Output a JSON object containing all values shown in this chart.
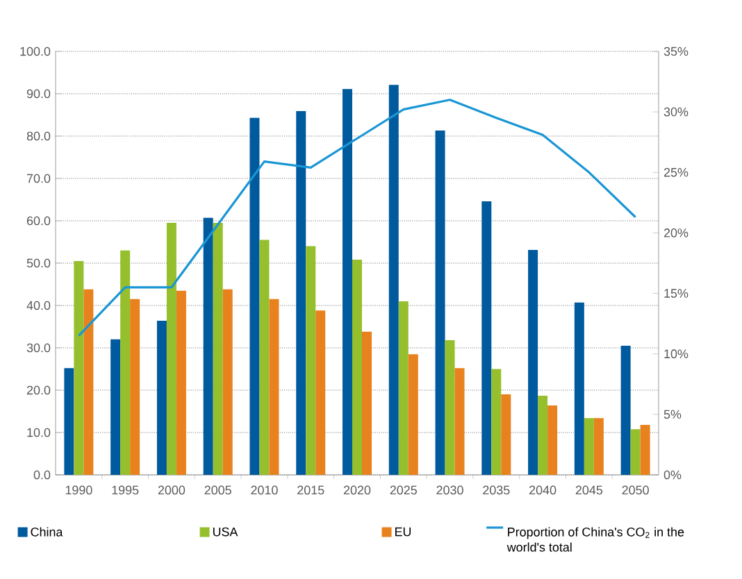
{
  "chart_data": {
    "type": "bar",
    "categories": [
      "1990",
      "1995",
      "2000",
      "2005",
      "2010",
      "2015",
      "2020",
      "2025",
      "2030",
      "2035",
      "2040",
      "2045",
      "2050"
    ],
    "series": [
      {
        "name": "China",
        "color": "#005a9e",
        "values": [
          25.2,
          32,
          36.4,
          60.7,
          84.3,
          85.9,
          91.1,
          92.1,
          81.3,
          64.6,
          53.1,
          40.7,
          30.5
        ]
      },
      {
        "name": "USA",
        "color": "#96bf2d",
        "values": [
          50.5,
          53,
          59.5,
          59.5,
          55.5,
          54,
          50.8,
          41,
          31.8,
          25,
          18.7,
          13.4,
          10.8
        ]
      },
      {
        "name": "EU",
        "color": "#e8821e",
        "values": [
          43.8,
          41.5,
          43.5,
          43.8,
          41.5,
          38.8,
          33.8,
          28.5,
          25.2,
          19,
          16.4,
          13.4,
          11.8
        ]
      },
      {
        "name": "Proportion of China's CO$_{2}$ in the world's total",
        "color": "#1a96d4",
        "type": "line",
        "axis": "y2",
        "values": [
          11.5,
          15.5,
          15.5,
          20.7,
          25.9,
          25.4,
          27.8,
          30.2,
          31,
          29.5,
          28.1,
          25,
          21.3
        ]
      }
    ],
    "ylim": [
      0,
      100
    ],
    "yticks": [
      {
        "value": 0,
        "label": "0.0"
      },
      {
        "value": 10,
        "label": "10.0"
      },
      {
        "value": 20,
        "label": "20.0"
      },
      {
        "value": 30,
        "label": "30.0"
      },
      {
        "value": 40,
        "label": "40.0"
      },
      {
        "value": 50,
        "label": "50.0"
      },
      {
        "value": 60,
        "label": "60.0"
      },
      {
        "value": 70,
        "label": "70.0"
      },
      {
        "value": 80,
        "label": "80.0"
      },
      {
        "value": 90,
        "label": "90.0"
      },
      {
        "value": 100,
        "label": "100.0"
      }
    ],
    "y2lim": [
      0,
      35
    ],
    "y2ticks": [
      {
        "value": 0,
        "label": "0%"
      },
      {
        "value": 5,
        "label": "5%"
      },
      {
        "value": 10,
        "label": "10%"
      },
      {
        "value": 15,
        "label": "15%"
      },
      {
        "value": 20,
        "label": "20%"
      },
      {
        "value": 25,
        "label": "25%"
      },
      {
        "value": 30,
        "label": "30%"
      },
      {
        "value": 35,
        "label": "35%"
      }
    ],
    "grid": "y",
    "legend": "bottom",
    "marker": "none",
    "line_style": "solid"
  }
}
